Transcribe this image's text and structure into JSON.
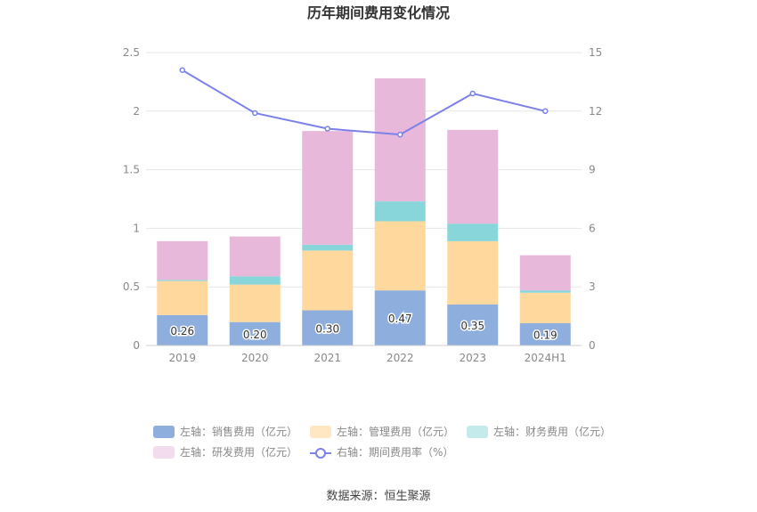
{
  "chart_data": {
    "type": "bar",
    "title": "历年期间费用变化情况",
    "categories": [
      "2019",
      "2020",
      "2021",
      "2022",
      "2023",
      "2024H1"
    ],
    "stacked": true,
    "left_axis": {
      "ylim": [
        0,
        2.5
      ],
      "ticks": [
        "0",
        "0.5",
        "1",
        "1.5",
        "2",
        "2.5"
      ]
    },
    "right_axis": {
      "ylim": [
        0,
        15
      ],
      "ticks": [
        "0",
        "3",
        "6",
        "9",
        "12",
        "15"
      ]
    },
    "series": [
      {
        "name": "左轴：销售费用（亿元）",
        "axis": "left",
        "type": "bar",
        "values": [
          0.26,
          0.2,
          0.3,
          0.47,
          0.35,
          0.19
        ],
        "labels": [
          "0.26",
          "0.20",
          "0.30",
          "0.47",
          "0.35",
          "0.19"
        ]
      },
      {
        "name": "左轴：管理费用（亿元）",
        "axis": "left",
        "type": "bar",
        "values": [
          0.29,
          0.32,
          0.51,
          0.59,
          0.54,
          0.26
        ]
      },
      {
        "name": "左轴：财务费用（亿元）",
        "axis": "left",
        "type": "bar",
        "values": [
          0.01,
          0.07,
          0.05,
          0.17,
          0.15,
          0.02
        ]
      },
      {
        "name": "左轴：研发费用（亿元）",
        "axis": "left",
        "type": "bar",
        "values": [
          0.33,
          0.34,
          0.97,
          1.05,
          0.8,
          0.3
        ]
      },
      {
        "name": "右轴：期间费用率（%）",
        "axis": "right",
        "type": "line",
        "values": [
          14.1,
          11.9,
          11.1,
          10.8,
          12.9,
          12.0
        ]
      }
    ],
    "grid": true,
    "legend_position": "bottom"
  },
  "colors": {
    "sales": "#8eaedd",
    "admin": "#ffd89e",
    "finance": "#88d6da",
    "rd": "#e8b8da",
    "rate_line": "#7b80ea",
    "legend_sales": "#8eaedd",
    "legend_admin": "#ffe7c4",
    "legend_finance": "#c4eaec",
    "legend_rd": "#f3dcee"
  },
  "source": "数据来源：恒生聚源"
}
